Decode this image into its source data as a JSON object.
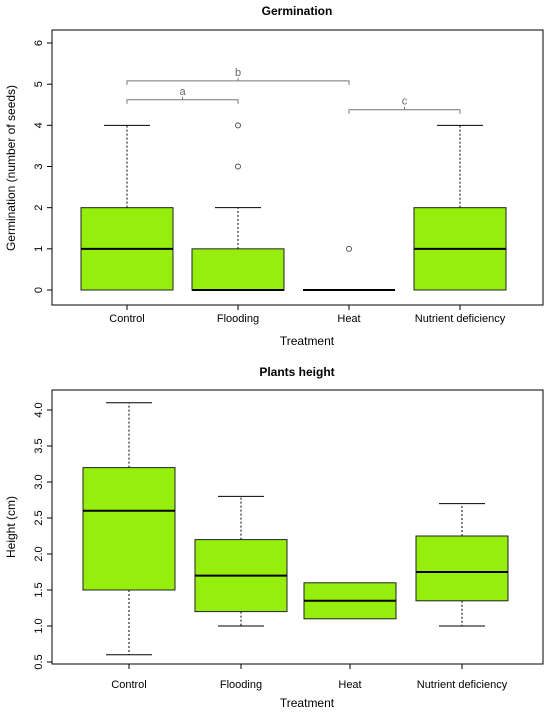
{
  "colors": {
    "box_fill": "#95ee0b",
    "box_stroke": "#222222",
    "bracket": "#777777",
    "outlier": "#555555"
  },
  "chart_data": [
    {
      "type": "boxplot",
      "title": "Germination",
      "xlabel": "Treatment",
      "ylabel": "Germination (number of seeds)",
      "ylim": [
        0,
        6
      ],
      "yticks": [
        "0",
        "1",
        "2",
        "3",
        "4",
        "5",
        "6"
      ],
      "categories": [
        "Control",
        "Flooding",
        "Heat",
        "Nutrient deficiency"
      ],
      "boxes": [
        {
          "min": 0,
          "q1": 0,
          "median": 1,
          "q3": 2,
          "max": 4,
          "outliers": []
        },
        {
          "min": 0,
          "q1": 0,
          "median": 0,
          "q3": 1,
          "max": 2,
          "outliers": [
            3,
            4
          ]
        },
        {
          "min": 0,
          "q1": 0,
          "median": 0,
          "q3": 0,
          "max": 0,
          "outliers": [
            1
          ]
        },
        {
          "min": 0,
          "q1": 0,
          "median": 1,
          "q3": 2,
          "max": 4,
          "outliers": []
        }
      ],
      "brackets": [
        {
          "from": 0,
          "to": 1,
          "y": 4.62,
          "label": "a"
        },
        {
          "from": 0,
          "to": 2,
          "y": 5.08,
          "label": "b"
        },
        {
          "from": 2,
          "to": 3,
          "y": 4.38,
          "label": "c"
        }
      ]
    },
    {
      "type": "boxplot",
      "title": "Plants height",
      "xlabel": "Treatment",
      "ylabel": "Height (cm)",
      "ylim": [
        0.5,
        4.2
      ],
      "yticks": [
        "0.5",
        "1.0",
        "1.5",
        "2.0",
        "2.5",
        "3.0",
        "3.5",
        "4.0"
      ],
      "categories": [
        "Control",
        "Flooding",
        "Heat",
        "Nutrient deficiency"
      ],
      "boxes": [
        {
          "min": 0.6,
          "q1": 1.5,
          "median": 2.6,
          "q3": 3.2,
          "max": 4.1,
          "outliers": []
        },
        {
          "min": 1.0,
          "q1": 1.2,
          "median": 1.7,
          "q3": 2.2,
          "max": 2.8,
          "outliers": []
        },
        {
          "min": 1.1,
          "q1": 1.1,
          "median": 1.35,
          "q3": 1.6,
          "max": 1.6,
          "outliers": []
        },
        {
          "min": 1.0,
          "q1": 1.35,
          "median": 1.75,
          "q3": 2.25,
          "max": 2.7,
          "outliers": []
        }
      ],
      "brackets": []
    }
  ]
}
